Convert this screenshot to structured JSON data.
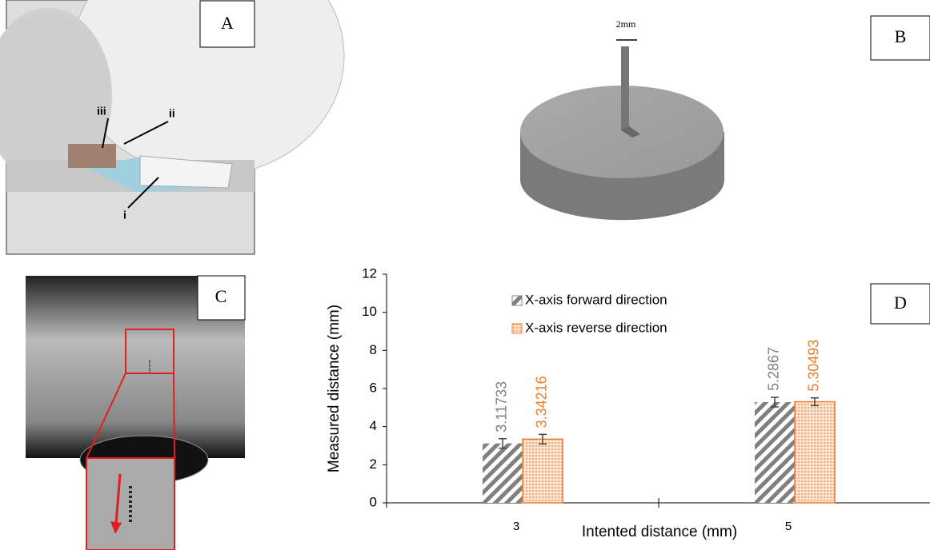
{
  "panels": {
    "a": {
      "label": "A",
      "arrows": [
        "iii",
        "ii",
        "i"
      ]
    },
    "b": {
      "label": "B",
      "annotation": "2mm"
    },
    "c": {
      "label": "C"
    },
    "d": {
      "label": "D"
    }
  },
  "chart_data": {
    "type": "bar",
    "x_label": "Intented distance (mm)",
    "y_label": "Measured distance (mm)",
    "categories": [
      "3",
      "5"
    ],
    "series": [
      {
        "name": "X-axis forward direction",
        "color": "#808080",
        "values": [
          3.11733,
          5.2867
        ],
        "errors": [
          0.25,
          0.25
        ]
      },
      {
        "name": "X-axis reverse direction",
        "color": "#ed7d31",
        "values": [
          3.34216,
          5.30493
        ],
        "errors": [
          0.25,
          0.2
        ]
      }
    ],
    "ylim": [
      0,
      12
    ],
    "yticks": [
      0,
      2,
      4,
      6,
      8,
      10,
      12
    ],
    "legend": "top-left"
  }
}
